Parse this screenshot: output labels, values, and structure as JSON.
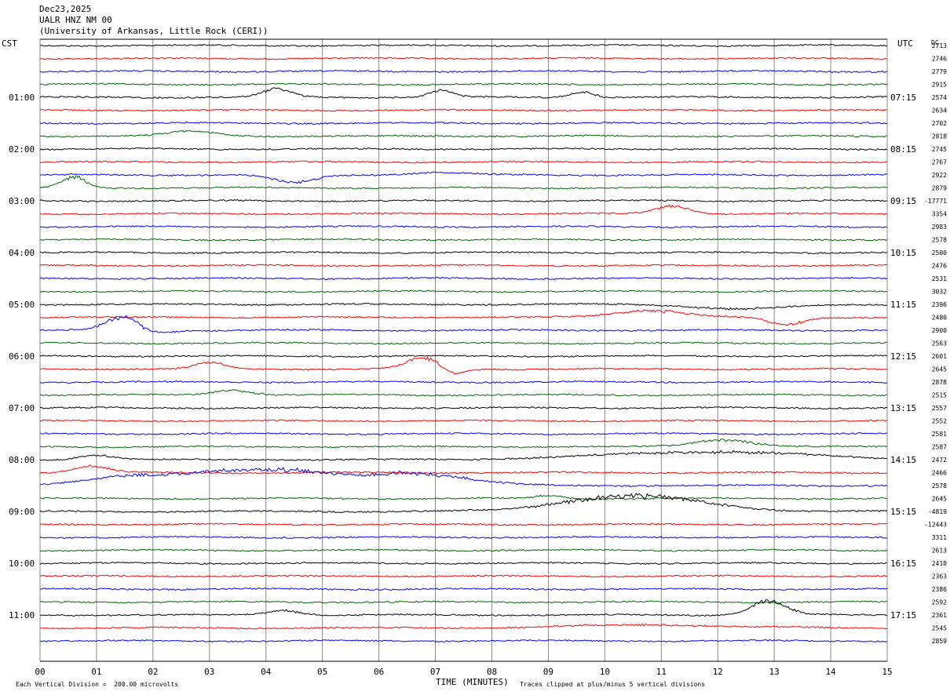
{
  "header": {
    "date": "Dec23,2025",
    "station": "UALR HNZ NM 00",
    "institution": "(University of Arkansas, Little Rock (CERI))"
  },
  "left_label": "CST",
  "right_label": "UTC",
  "dc_label": "DC",
  "footer": {
    "scale": "Each Vertical Division =  200.00 microvolts",
    "xlabel": "TIME (MINUTES)",
    "clip": "Traces clipped at plus/minus 5 vertical divisions"
  },
  "colors": {
    "black": "#000000",
    "red": "#ff0000",
    "blue": "#0000ff",
    "green": "#006600",
    "grid": "#888888"
  },
  "chart_data": {
    "type": "line",
    "title": "",
    "xlabel": "TIME (MINUTES)",
    "x_range": [
      0,
      15
    ],
    "x_ticks": [
      "00",
      "01",
      "02",
      "03",
      "04",
      "05",
      "06",
      "07",
      "08",
      "09",
      "10",
      "11",
      "12",
      "13",
      "14",
      "15"
    ],
    "trace_minutes": 15,
    "color_cycle": [
      "black",
      "red",
      "blue",
      "green"
    ],
    "cst_labels": [
      "01:00",
      "02:00",
      "03:00",
      "04:00",
      "05:00",
      "06:00",
      "07:00",
      "08:00",
      "09:00",
      "10:00",
      "11:00"
    ],
    "utc_labels": [
      "07:15",
      "08:15",
      "09:15",
      "10:15",
      "11:15",
      "12:15",
      "13:15",
      "14:15",
      "15:15",
      "16:15",
      "17:15"
    ],
    "dc_values": [
      "2713",
      "2746",
      "2779",
      "2915",
      "2574",
      "2634",
      "2702",
      "2818",
      "2745",
      "2767",
      "2922",
      "2879",
      "-17771",
      "3354",
      "2983",
      "2578",
      "2500",
      "2476",
      "2531",
      "3032",
      "2396",
      "2480",
      "2900",
      "2563",
      "2601",
      "2645",
      "2878",
      "2515",
      "2557",
      "2552",
      "2581",
      "2587",
      "2472",
      "2466",
      "2578",
      "2645",
      "-4819",
      "-12443",
      "3311",
      "2613",
      "2410",
      "2363",
      "2386",
      "2592",
      "2361",
      "2545",
      "2859"
    ]
  }
}
